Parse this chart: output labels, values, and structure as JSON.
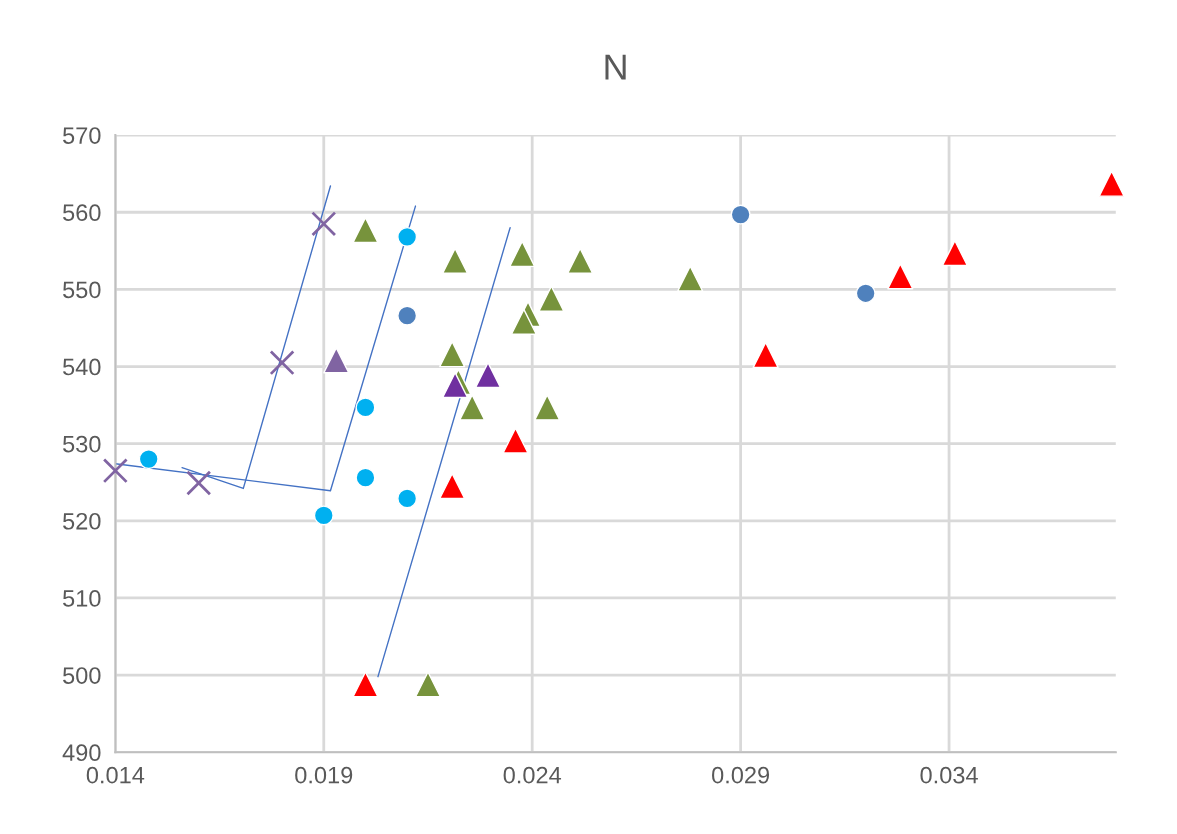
{
  "chart_data": {
    "type": "scatter",
    "title": "N",
    "xlim": [
      0.014,
      0.038
    ],
    "xticks": [
      0.014,
      0.019,
      0.024,
      0.029,
      0.034
    ],
    "ylim": [
      490,
      570
    ],
    "yticks": [
      490,
      500,
      510,
      520,
      530,
      540,
      550,
      560,
      570
    ],
    "grid": true,
    "legend": false,
    "series": [
      {
        "type": "line",
        "color": "#4472c4",
        "marker": "none",
        "x": [
          0.0156,
          0.01707,
          0.01916
        ],
        "values": [
          526.9,
          524.2,
          563.4
        ]
      },
      {
        "type": "line",
        "color": "#4472c4",
        "marker": "none",
        "x": [
          0.014,
          0.01916,
          0.0212
        ],
        "values": [
          527.4,
          523.9,
          560.8
        ]
      },
      {
        "type": "line",
        "color": "#4472c4",
        "marker": "none",
        "x": [
          0.0203,
          0.02347
        ],
        "values": [
          499.8,
          558.0
        ]
      },
      {
        "color": "#8064a2",
        "marker": "cross",
        "x": [
          0.014,
          0.016,
          0.018,
          0.019
        ],
        "values": [
          526.5,
          524.9,
          540.5,
          558.5
        ]
      },
      {
        "color": "#00b0f0",
        "marker": "circle",
        "x": [
          0.0148,
          0.019,
          0.02,
          0.02,
          0.021,
          0.021
        ],
        "values": [
          528.0,
          520.7,
          534.7,
          525.6,
          522.9,
          556.8
        ]
      },
      {
        "color": "#4f81bd",
        "marker": "circle",
        "x": [
          0.021,
          0.029,
          0.032
        ],
        "values": [
          546.6,
          559.7,
          549.5
        ]
      },
      {
        "color": "#77933c",
        "marker": "triangle",
        "x": [
          0.02,
          0.02215,
          0.02376,
          0.02515,
          0.02779,
          0.02446,
          0.0239,
          0.0238,
          0.02208,
          0.02223,
          0.02256,
          0.02436,
          0.0215
        ],
        "values": [
          557.7,
          553.7,
          554.6,
          553.7,
          551.4,
          548.8,
          546.8,
          545.8,
          541.6,
          538.0,
          534.7,
          534.7,
          498.8
        ]
      },
      {
        "color": "#8064a2",
        "marker": "triangle",
        "x": [
          0.0193
        ],
        "values": [
          540.8
        ]
      },
      {
        "color": "#7030a0",
        "marker": "triangle",
        "x": [
          0.02215,
          0.02294
        ],
        "values": [
          537.6,
          538.9
        ]
      },
      {
        "color": "#ff0000",
        "marker": "triangle",
        "x": [
          0.02,
          0.02208,
          0.0236,
          0.0296,
          0.03283,
          0.03414,
          0.0379
        ],
        "values": [
          498.8,
          524.5,
          530.4,
          541.5,
          551.7,
          554.7,
          563.7
        ]
      }
    ]
  }
}
